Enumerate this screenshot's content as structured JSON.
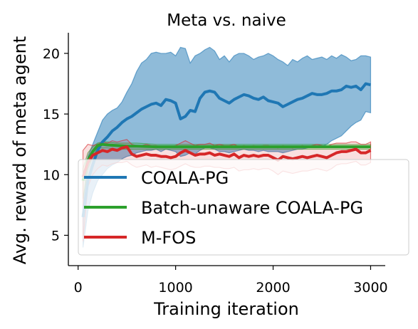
{
  "chart_data": {
    "type": "line",
    "title": "Meta vs. naive",
    "xlabel": "Training iteration",
    "ylabel": "Avg. reward of meta agent",
    "xlim": [
      -100,
      3150
    ],
    "ylim": [
      2.5,
      21.7
    ],
    "xticks": [
      0,
      1000,
      2000,
      3000
    ],
    "yticks": [
      5,
      10,
      15,
      20
    ],
    "legend_position": "lower-left",
    "grid": false,
    "series": [
      {
        "name": "COALA-PG",
        "color": "#1f77b4",
        "x": [
          50,
          100,
          150,
          200,
          250,
          300,
          350,
          400,
          450,
          500,
          550,
          600,
          650,
          700,
          750,
          800,
          850,
          900,
          950,
          1000,
          1050,
          1100,
          1150,
          1200,
          1250,
          1300,
          1350,
          1400,
          1450,
          1500,
          1550,
          1600,
          1650,
          1700,
          1750,
          1800,
          1850,
          1900,
          1950,
          2000,
          2050,
          2100,
          2150,
          2200,
          2250,
          2300,
          2350,
          2400,
          2450,
          2500,
          2550,
          2600,
          2650,
          2700,
          2750,
          2800,
          2850,
          2900,
          2950,
          3000
        ],
        "mean": [
          6.5,
          9.5,
          10.8,
          12.0,
          12.7,
          13.1,
          13.6,
          13.9,
          14.3,
          14.6,
          14.8,
          15.1,
          15.4,
          15.6,
          15.8,
          15.9,
          15.7,
          16.2,
          16.1,
          15.9,
          14.6,
          14.8,
          15.3,
          15.2,
          16.3,
          16.8,
          16.9,
          16.8,
          16.3,
          16.1,
          15.9,
          16.2,
          16.4,
          16.6,
          16.5,
          16.3,
          16.2,
          16.4,
          16.1,
          16.0,
          15.9,
          15.6,
          15.8,
          16.0,
          16.2,
          16.3,
          16.5,
          16.7,
          16.6,
          16.6,
          16.7,
          16.9,
          16.9,
          17.0,
          17.3,
          17.2,
          17.3,
          17.0,
          17.5,
          17.4
        ],
        "lower": [
          4.0,
          7.0,
          8.5,
          9.5,
          10.0,
          10.5,
          10.8,
          11.0,
          11.3,
          11.5,
          11.6,
          11.8,
          11.9,
          12.0,
          12.0,
          12.1,
          11.9,
          12.1,
          12.0,
          11.9,
          11.5,
          11.6,
          11.8,
          11.7,
          12.0,
          12.2,
          12.2,
          12.1,
          11.9,
          11.9,
          11.8,
          11.9,
          12.0,
          12.1,
          12.0,
          12.0,
          11.9,
          12.0,
          11.9,
          11.9,
          11.9,
          11.8,
          11.9,
          12.0,
          12.1,
          12.1,
          12.2,
          12.3,
          12.3,
          12.3,
          12.5,
          12.8,
          13.0,
          13.2,
          13.6,
          14.0,
          14.3,
          14.5,
          15.2,
          15.1
        ],
        "upper": [
          7.5,
          11.5,
          12.5,
          13.5,
          14.5,
          15.0,
          15.3,
          15.5,
          16.0,
          16.8,
          17.5,
          18.5,
          19.2,
          19.5,
          20.0,
          20.1,
          20.0,
          20.0,
          20.1,
          19.8,
          20.5,
          20.4,
          19.2,
          19.8,
          20.0,
          20.3,
          20.5,
          20.2,
          19.5,
          19.8,
          19.3,
          19.8,
          20.0,
          20.0,
          19.8,
          19.5,
          19.7,
          19.8,
          20.0,
          19.8,
          19.5,
          19.3,
          19.0,
          19.5,
          19.3,
          19.6,
          19.8,
          19.5,
          19.6,
          19.7,
          19.5,
          19.8,
          19.6,
          19.9,
          19.7,
          19.4,
          19.5,
          19.8,
          19.8,
          19.7
        ]
      },
      {
        "name": "Batch-unaware COALA-PG",
        "color": "#2ca02c",
        "x": [
          50,
          100,
          150,
          200,
          250,
          300,
          400,
          500,
          600,
          800,
          1000,
          1200,
          1400,
          1600,
          1800,
          2000,
          2200,
          2400,
          2600,
          2800,
          3000
        ],
        "mean": [
          9.5,
          11.2,
          11.9,
          12.4,
          12.5,
          12.45,
          12.4,
          12.35,
          12.35,
          12.3,
          12.3,
          12.3,
          12.3,
          12.3,
          12.3,
          12.3,
          12.3,
          12.3,
          12.3,
          12.3,
          12.3
        ],
        "lower": [
          8.0,
          10.5,
          11.5,
          12.2,
          12.2,
          12.2,
          12.1,
          12.1,
          12.1,
          12.1,
          12.1,
          12.1,
          12.1,
          12.1,
          12.1,
          12.1,
          12.1,
          12.1,
          12.1,
          12.1,
          12.1
        ],
        "upper": [
          10.5,
          11.8,
          12.3,
          12.6,
          12.7,
          12.7,
          12.6,
          12.6,
          12.6,
          12.5,
          12.5,
          12.5,
          12.5,
          12.5,
          12.5,
          12.5,
          12.5,
          12.5,
          12.5,
          12.5,
          12.5
        ]
      },
      {
        "name": "M-FOS",
        "color": "#d62728",
        "x": [
          50,
          100,
          150,
          200,
          250,
          300,
          350,
          400,
          450,
          500,
          550,
          600,
          650,
          700,
          750,
          800,
          850,
          900,
          950,
          1000,
          1050,
          1100,
          1150,
          1200,
          1250,
          1300,
          1350,
          1400,
          1450,
          1500,
          1550,
          1600,
          1650,
          1700,
          1750,
          1800,
          1850,
          1900,
          1950,
          2000,
          2050,
          2100,
          2150,
          2200,
          2250,
          2300,
          2350,
          2400,
          2450,
          2500,
          2550,
          2600,
          2650,
          2700,
          2750,
          2800,
          2850,
          2900,
          2950,
          3000
        ],
        "mean": [
          9.8,
          11.0,
          11.6,
          11.8,
          12.0,
          11.9,
          12.1,
          12.0,
          12.2,
          12.3,
          11.7,
          11.5,
          11.6,
          11.7,
          11.6,
          11.6,
          11.5,
          11.5,
          11.4,
          11.5,
          11.8,
          12.0,
          11.8,
          11.6,
          11.7,
          11.7,
          11.8,
          11.6,
          11.7,
          11.6,
          11.5,
          11.7,
          11.4,
          11.6,
          11.5,
          11.6,
          11.5,
          11.6,
          11.6,
          11.4,
          11.2,
          11.5,
          11.4,
          11.3,
          11.4,
          11.5,
          11.4,
          11.5,
          11.6,
          11.5,
          11.4,
          11.6,
          11.8,
          11.9,
          11.9,
          12.0,
          12.1,
          11.8,
          11.8,
          12.0
        ],
        "lower": [
          4.5,
          9.0,
          10.0,
          10.5,
          10.8,
          10.7,
          10.9,
          11.0,
          11.0,
          11.1,
          10.8,
          10.6,
          10.7,
          10.8,
          10.6,
          10.7,
          10.6,
          10.5,
          10.4,
          10.5,
          10.7,
          10.9,
          10.7,
          10.6,
          10.6,
          10.7,
          10.7,
          10.6,
          10.6,
          10.5,
          10.5,
          10.6,
          10.3,
          10.4,
          10.4,
          10.5,
          10.4,
          10.5,
          10.5,
          10.3,
          10.0,
          10.3,
          10.2,
          10.1,
          10.2,
          10.3,
          10.3,
          10.4,
          10.5,
          10.4,
          10.3,
          10.5,
          10.8,
          10.9,
          10.9,
          11.0,
          11.1,
          10.8,
          10.8,
          11.0
        ],
        "upper": [
          12.0,
          12.5,
          12.4,
          12.5,
          12.7,
          12.6,
          12.8,
          12.7,
          12.8,
          12.9,
          12.5,
          12.4,
          12.4,
          12.5,
          12.4,
          12.4,
          12.3,
          12.3,
          12.3,
          12.4,
          12.6,
          12.8,
          12.6,
          12.4,
          12.5,
          12.5,
          12.6,
          12.4,
          12.5,
          12.4,
          12.4,
          12.5,
          12.3,
          12.4,
          12.3,
          12.4,
          12.3,
          12.4,
          12.4,
          12.3,
          12.2,
          12.4,
          12.3,
          12.2,
          12.3,
          12.4,
          12.3,
          12.4,
          12.5,
          12.4,
          12.3,
          12.5,
          12.6,
          12.6,
          12.6,
          12.7,
          12.7,
          12.5,
          12.5,
          12.7
        ]
      }
    ]
  }
}
